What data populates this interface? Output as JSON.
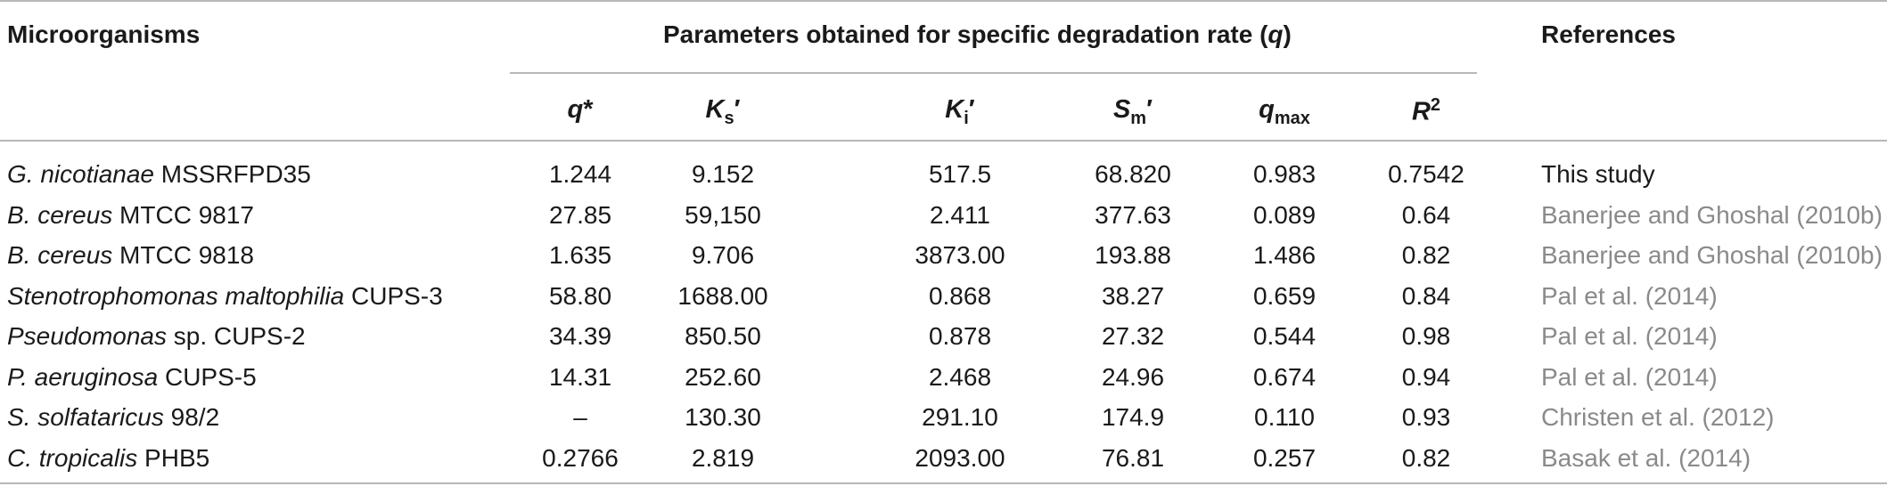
{
  "header": {
    "col_microorganisms": "Microorganisms",
    "group_title_prefix": "Parameters obtained for specific degradation rate (",
    "group_title_var": "q",
    "group_title_suffix": ")",
    "col_references": "References",
    "params": [
      {
        "main": "q",
        "sub": "",
        "sup": "",
        "tail": "*"
      },
      {
        "main": "K",
        "sub": "s",
        "sup": "",
        "tail": "′"
      },
      {
        "main": "K",
        "sub": "i",
        "sup": "",
        "tail": "′"
      },
      {
        "main": "S",
        "sub": "m",
        "sup": "",
        "tail": "′"
      },
      {
        "main": "q",
        "sub": "max",
        "sup": "",
        "tail": ""
      },
      {
        "main": "R",
        "sub": "",
        "sup": "2",
        "tail": ""
      }
    ]
  },
  "rows": [
    {
      "genus": "G. nicotianae",
      "strain": " MSSRFPD35",
      "q": "1.244",
      "ks": "9.152",
      "ki": "517.5",
      "sm": "68.820",
      "qmax": "0.983",
      "r2": "0.7542",
      "ref": "This study"
    },
    {
      "genus": "B. cereus",
      "strain": " MTCC 9817",
      "q": "27.85",
      "ks": "59,150",
      "ki": "2.411",
      "sm": "377.63",
      "qmax": "0.089",
      "r2": "0.64",
      "ref": "Banerjee and Ghoshal (2010b)"
    },
    {
      "genus": "B. cereus",
      "strain": " MTCC 9818",
      "q": "1.635",
      "ks": "9.706",
      "ki": "3873.00",
      "sm": "193.88",
      "qmax": "1.486",
      "r2": "0.82",
      "ref": "Banerjee and Ghoshal (2010b)"
    },
    {
      "genus": "Stenotrophomonas maltophilia",
      "strain": " CUPS-3",
      "q": "58.80",
      "ks": "1688.00",
      "ki": "0.868",
      "sm": "38.27",
      "qmax": "0.659",
      "r2": "0.84",
      "ref": "Pal et al. (2014)"
    },
    {
      "genus": "Pseudomonas",
      "strain": " sp. CUPS-2",
      "q": "34.39",
      "ks": "850.50",
      "ki": "0.878",
      "sm": "27.32",
      "qmax": "0.544",
      "r2": "0.98",
      "ref": "Pal et al. (2014)"
    },
    {
      "genus": "P. aeruginosa",
      "strain": " CUPS-5",
      "q": "14.31",
      "ks": "252.60",
      "ki": "2.468",
      "sm": "24.96",
      "qmax": "0.674",
      "r2": "0.94",
      "ref": "Pal et al. (2014)"
    },
    {
      "genus": "S. solfataricus",
      "strain": " 98/2",
      "q": "–",
      "ks": "130.30",
      "ki": "291.10",
      "sm": "174.9",
      "qmax": "0.110",
      "r2": "0.93",
      "ref": "Christen et al. (2012)"
    },
    {
      "genus": "C. tropicalis",
      "strain": " PHB5",
      "q": "0.2766",
      "ks": "2.819",
      "ki": "2093.00",
      "sm": "76.81",
      "qmax": "0.257",
      "r2": "0.82",
      "ref": "Basak et al. (2014)"
    }
  ]
}
